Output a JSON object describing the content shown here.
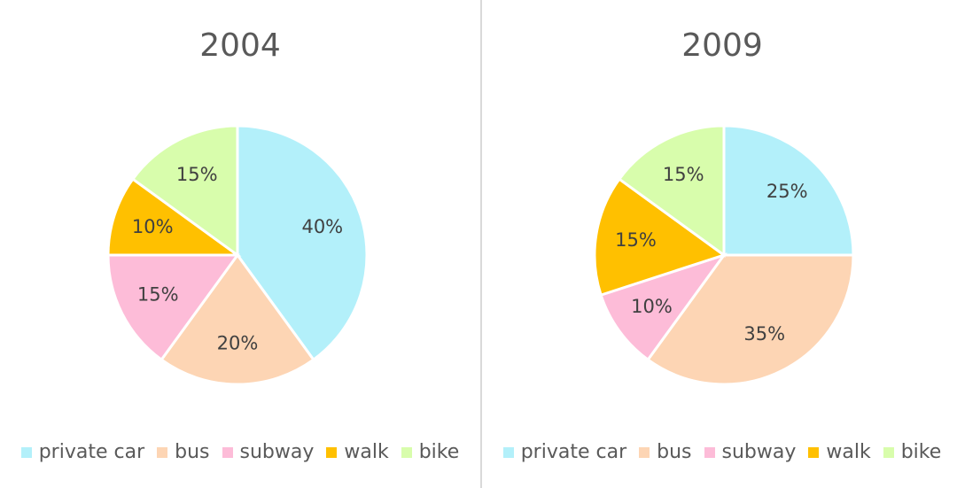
{
  "chart_data": [
    {
      "type": "pie",
      "title": "2004",
      "categories": [
        "private car",
        "bus",
        "subway",
        "walk",
        "bike"
      ],
      "values": [
        40,
        20,
        15,
        10,
        15
      ],
      "labels": [
        "40%",
        "20%",
        "15%",
        "10%",
        "15%"
      ],
      "colors": [
        "#b3f0fa",
        "#fdd5b4",
        "#fdbcd8",
        "#ffc000",
        "#d8fdac"
      ],
      "legend_position": "bottom"
    },
    {
      "type": "pie",
      "title": "2009",
      "categories": [
        "private car",
        "bus",
        "subway",
        "walk",
        "bike"
      ],
      "values": [
        25,
        35,
        10,
        15,
        15
      ],
      "labels": [
        "25%",
        "35%",
        "10%",
        "15%",
        "15%"
      ],
      "colors": [
        "#b3f0fa",
        "#fdd5b4",
        "#fdbcd8",
        "#ffc000",
        "#d8fdac"
      ],
      "legend_position": "bottom"
    }
  ]
}
